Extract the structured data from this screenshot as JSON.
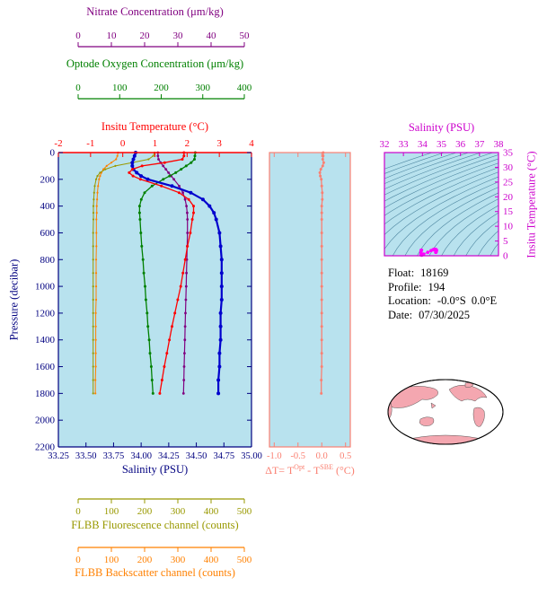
{
  "colors": {
    "plot_bg": "#b8e2ee",
    "main_axis": "#000080",
    "ts_contours": "#4e86a0",
    "land": "#f4a7b0"
  },
  "top_axes": [
    {
      "id": "nitrate",
      "title": "Nitrate Concentration (μm/kg)",
      "color": "#800080",
      "min": 0,
      "max": 50,
      "ticks": [
        "0",
        "10",
        "20",
        "30",
        "40",
        "50"
      ]
    },
    {
      "id": "oxygen",
      "title": "Optode Oxygen Concentration (μm/kg)",
      "color": "#008000",
      "min": 0,
      "max": 400,
      "ticks": [
        "0",
        "100",
        "200",
        "300",
        "400"
      ]
    },
    {
      "id": "temperature",
      "title": "Insitu Temperature (°C)",
      "color": "#ff0000",
      "min": -2,
      "max": 4,
      "ticks": [
        "-2",
        "-1",
        "0",
        "1",
        "2",
        "3",
        "4"
      ]
    }
  ],
  "main_plot": {
    "ylabel": "Pressure (decibar)",
    "y_min": 0,
    "y_max": 2200,
    "y_ticks": [
      "0",
      "200",
      "400",
      "600",
      "800",
      "1000",
      "1200",
      "1400",
      "1600",
      "1800",
      "2000",
      "2200"
    ],
    "xlabel": "Salinity (PSU)",
    "x_min": 33.25,
    "x_max": 35.0,
    "x_ticks": [
      "33.25",
      "33.50",
      "33.75",
      "34.00",
      "34.25",
      "34.50",
      "34.75",
      "35.00"
    ]
  },
  "delta_plot": {
    "label_parts": {
      "prefix": "ΔT= T",
      "sup1": "Opt",
      "mid": " - T",
      "sup2": "SBE",
      "suffix": " (°C)"
    }
  },
  "ts_plot": {
    "title": "Salinity (PSU)",
    "color": "#cc00cc",
    "x_ticks": [
      "32",
      "33",
      "34",
      "35",
      "36",
      "37",
      "38"
    ],
    "ylabel": "Insitu Temperature (°C)",
    "y_ticks": [
      "0",
      "5",
      "10",
      "15",
      "20",
      "25",
      "30",
      "35"
    ]
  },
  "info": [
    {
      "label": "Float:",
      "value": "18169"
    },
    {
      "label": "Profile:",
      "value": "194"
    },
    {
      "label": "Location:",
      "value": "-0.0°S  0.0°E"
    },
    {
      "label": "Date:",
      "value": "07/30/2025"
    }
  ],
  "bottom_axes": [
    {
      "id": "fluorescence",
      "title": "FLBB Fluorescence channel (counts)",
      "color": "#999900",
      "min": 0,
      "max": 500,
      "ticks": [
        "0",
        "100",
        "200",
        "300",
        "400",
        "500"
      ]
    },
    {
      "id": "backscatter",
      "title": "FLBB Backscatter channel (counts)",
      "color": "#ff8000",
      "min": 0,
      "max": 500,
      "ticks": [
        "0",
        "100",
        "200",
        "300",
        "400",
        "500"
      ]
    }
  ],
  "chart_data": [
    {
      "type": "line",
      "name": "depth-profiles",
      "ylabel": "Pressure (decibar)",
      "ylim": [
        0,
        2200
      ],
      "pressure": [
        0,
        25,
        50,
        75,
        100,
        125,
        150,
        175,
        200,
        250,
        300,
        350,
        400,
        450,
        500,
        600,
        700,
        800,
        900,
        1000,
        1100,
        1200,
        1300,
        1400,
        1500,
        1600,
        1700,
        1800
      ],
      "series": [
        {
          "id": "salinity",
          "name": "Salinity (PSU)",
          "color": "#0000cd",
          "x_axis": "bottom",
          "xlim": [
            33.25,
            35.0
          ],
          "values": [
            33.95,
            33.94,
            33.93,
            33.92,
            33.92,
            33.93,
            33.96,
            34.0,
            34.06,
            34.28,
            34.45,
            34.56,
            34.62,
            34.66,
            34.68,
            34.71,
            34.72,
            34.73,
            34.73,
            34.73,
            34.73,
            34.72,
            34.72,
            34.72,
            34.71,
            34.71,
            34.7,
            34.7
          ]
        },
        {
          "id": "temperature",
          "name": "Insitu Temperature (°C)",
          "color": "#ff0000",
          "x_axis": "top",
          "xlim": [
            -2,
            4
          ],
          "values": [
            1.9,
            1.9,
            1.85,
            1.3,
            0.6,
            0.3,
            0.2,
            0.32,
            0.55,
            1.2,
            1.75,
            2.05,
            2.2,
            2.2,
            2.16,
            2.1,
            2.01,
            1.94,
            1.87,
            1.8,
            1.71,
            1.62,
            1.53,
            1.45,
            1.37,
            1.29,
            1.22,
            1.15
          ]
        },
        {
          "id": "oxygen",
          "name": "Optode Oxygen Concentration (μm/kg)",
          "color": "#008000",
          "x_axis": "top-offset",
          "xlim": [
            0,
            400
          ],
          "values": [
            282,
            281,
            280,
            272,
            260,
            248,
            235,
            220,
            205,
            178,
            160,
            152,
            148,
            148,
            149,
            151,
            153,
            156,
            158,
            161,
            163,
            166,
            168,
            171,
            173,
            176,
            178,
            180
          ]
        },
        {
          "id": "nitrate",
          "name": "Nitrate Concentration (μm/kg)",
          "color": "#800080",
          "x_axis": "top-offset",
          "xlim": [
            0,
            50
          ],
          "values": [
            24.0,
            24.0,
            24.2,
            24.8,
            25.6,
            26.4,
            27.2,
            28.0,
            28.8,
            30.4,
            31.5,
            32.2,
            32.6,
            32.8,
            32.9,
            32.9,
            32.8,
            32.7,
            32.6,
            32.5,
            32.4,
            32.3,
            32.2,
            32.1,
            32.0,
            31.9,
            31.8,
            31.7
          ]
        },
        {
          "id": "fluorescence",
          "name": "FLBB Fluorescence channel (counts)",
          "color": "#999900",
          "x_axis": "bottom-offset",
          "xlim": [
            0,
            500
          ],
          "values": [
            230,
            226,
            212,
            162,
            112,
            82,
            66,
            58,
            54,
            50,
            48,
            47,
            46,
            46,
            46,
            45,
            45,
            45,
            45,
            45,
            45,
            45,
            45,
            45,
            45,
            45,
            45,
            45
          ]
        },
        {
          "id": "backscatter",
          "name": "FLBB Backscatter channel (counts)",
          "color": "#ff8000",
          "x_axis": "bottom-offset",
          "xlim": [
            0,
            500
          ],
          "values": [
            120,
            118,
            114,
            100,
            86,
            76,
            70,
            66,
            63,
            60,
            58,
            57,
            56,
            56,
            55,
            55,
            55,
            54,
            54,
            54,
            54,
            53,
            53,
            53,
            53,
            53,
            52,
            52
          ]
        }
      ]
    },
    {
      "type": "scatter",
      "name": "temperature-difference",
      "xlabel": "ΔT = T^Opt - T^SBE (°C)",
      "x_min": -1.1,
      "x_max": 0.6,
      "x_ticks": [
        "-1.0",
        "-0.5",
        "0.0",
        "0.5"
      ],
      "color": "#fa8072",
      "pressure": [
        0,
        25,
        50,
        75,
        100,
        125,
        150,
        175,
        200,
        250,
        300,
        350,
        400,
        450,
        500,
        600,
        700,
        800,
        900,
        1000,
        1100,
        1200,
        1300,
        1400,
        1500,
        1600,
        1700,
        1800
      ],
      "values": [
        0.03,
        0.03,
        0.02,
        0.04,
        0.02,
        -0.02,
        -0.04,
        -0.03,
        -0.01,
        0.0,
        0.01,
        0.01,
        0.0,
        0.0,
        0.0,
        0.0,
        0.0,
        0.0,
        0.0,
        0.0,
        0.0,
        0.0,
        0.0,
        0.0,
        0.0,
        0.0,
        -0.01,
        -0.01
      ]
    },
    {
      "type": "scatter",
      "name": "ts-diagram",
      "x_min": 32,
      "x_max": 38,
      "y_min": 0,
      "y_max": 35,
      "color": "#ff00ff",
      "background": "isopycnal density contours",
      "salinity": [
        33.95,
        33.94,
        33.93,
        33.92,
        33.92,
        33.93,
        33.96,
        34.0,
        34.06,
        34.28,
        34.45,
        34.56,
        34.62,
        34.66,
        34.68,
        34.71,
        34.72,
        34.73,
        34.73,
        34.73,
        34.73,
        34.72,
        34.72,
        34.72,
        34.71,
        34.71,
        34.7,
        34.7
      ],
      "temperature": [
        1.9,
        1.9,
        1.85,
        1.3,
        0.6,
        0.3,
        0.2,
        0.32,
        0.55,
        1.2,
        1.75,
        2.05,
        2.2,
        2.2,
        2.16,
        2.1,
        2.01,
        1.94,
        1.87,
        1.8,
        1.71,
        1.62,
        1.53,
        1.45,
        1.37,
        1.29,
        1.22,
        1.15
      ]
    }
  ]
}
